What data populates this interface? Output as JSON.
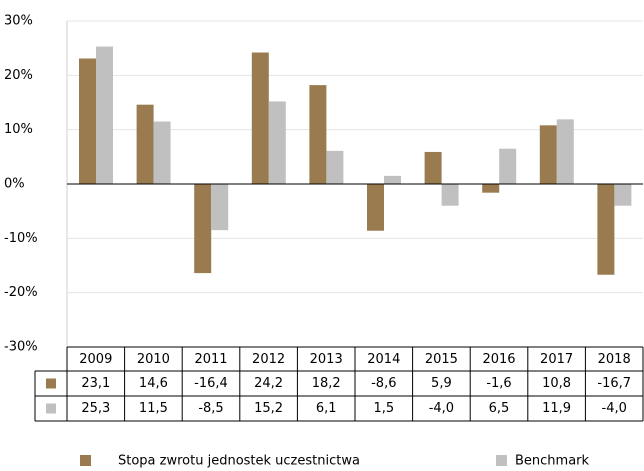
{
  "chart_data": {
    "type": "bar",
    "categories": [
      "2009",
      "2010",
      "2011",
      "2012",
      "2013",
      "2014",
      "2015",
      "2016",
      "2017",
      "2018"
    ],
    "series": [
      {
        "name": "Stopa zwrotu jednostek uczestnictwa",
        "color": "#9a7b4f",
        "values": [
          23.1,
          14.6,
          -16.4,
          24.2,
          18.2,
          -8.6,
          5.9,
          -1.6,
          10.8,
          -16.7
        ],
        "value_labels": [
          "23,1",
          "14,6",
          "-16,4",
          "24,2",
          "18,2",
          "-8,6",
          "5,9",
          "-1,6",
          "10,8",
          "-16,7"
        ]
      },
      {
        "name": "Benchmark",
        "color": "#c0c0c0",
        "values": [
          25.3,
          11.5,
          -8.5,
          15.2,
          6.1,
          1.5,
          -4.0,
          6.5,
          11.9,
          -4.0
        ],
        "value_labels": [
          "25,3",
          "11,5",
          "-8,5",
          "15,2",
          "6,1",
          "1,5",
          "-4,0",
          "6,5",
          "11,9",
          "-4,0"
        ]
      }
    ],
    "ylim": [
      -30,
      30
    ],
    "yticks": [
      {
        "value": -30,
        "label": "-30%"
      },
      {
        "value": -20,
        "label": "-20%"
      },
      {
        "value": -10,
        "label": "-10%"
      },
      {
        "value": 0,
        "label": "0%"
      },
      {
        "value": 10,
        "label": "10%"
      },
      {
        "value": 20,
        "label": "20%"
      },
      {
        "value": 30,
        "label": "30%"
      }
    ],
    "grid": true
  }
}
